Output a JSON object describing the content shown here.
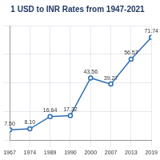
{
  "chart_data": {
    "type": "line",
    "title": "1 USD to INR Rates from 1947-2021",
    "categories": [
      "1967",
      "1974",
      "1989",
      "1990",
      "2000",
      "2007",
      "2013",
      "2019"
    ],
    "values": [
      7.5,
      8.1,
      16.64,
      17.32,
      43.56,
      39.27,
      56.57,
      71.74
    ],
    "value_labels": [
      "7.50",
      "8.10",
      "16.64",
      "17.32",
      "43.56",
      "39.27",
      "56.57",
      "71.74"
    ],
    "color": "#2e6db4",
    "marker": "circle",
    "ylim": [
      0,
      80
    ],
    "yticks": [
      0,
      20,
      40,
      60,
      80
    ],
    "grid": true,
    "data_labels": true,
    "tick_labels": "x"
  }
}
